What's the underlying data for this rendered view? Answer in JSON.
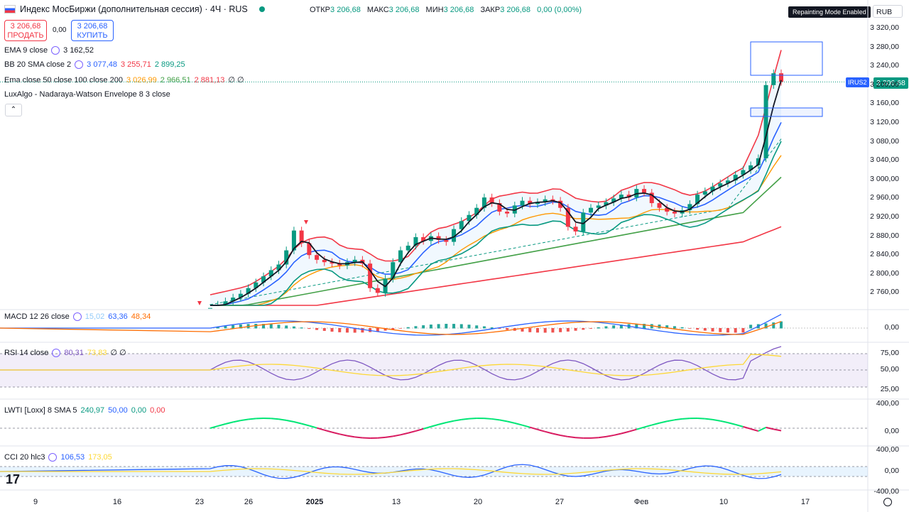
{
  "header": {
    "title": "Индекс МосБиржи (дополнительная сессия) · 4Ч · RUS",
    "ohlc": [
      {
        "k": "ОТКР",
        "v": "3 206,68"
      },
      {
        "k": "МАКС",
        "v": "3 206,68"
      },
      {
        "k": "МИН",
        "v": "3 206,68"
      },
      {
        "k": "ЗАКР",
        "v": "3 206,68"
      },
      {
        "k": "",
        "v": "0,00 (0,00%)"
      }
    ],
    "badge": "Repainting Mode Enabled",
    "currency": "RUB"
  },
  "trade": {
    "sell_price": "3 206,68",
    "sell_label": "ПРОДАТЬ",
    "spread": "0,00",
    "buy_price": "3 206,68",
    "buy_label": "КУПИТЬ"
  },
  "indicators": {
    "ema9": {
      "label": "EMA 9 close",
      "v1": "3 162,52"
    },
    "bb": {
      "label": "BB 20 SMA close 2",
      "v1": "3 077,48",
      "v2": "3 255,71",
      "v3": "2 899,25"
    },
    "ema_multi": {
      "label": "Ema close 50 close 100 close 200",
      "v1": "3 026,99",
      "v2": "2 966,51",
      "v3": "2 881,13",
      "v4": "∅ ∅"
    },
    "lux": {
      "label": "LuxAlgo - Nadaraya-Watson Envelope 8 3 close"
    },
    "macd": {
      "label": "MACD 12 26 close",
      "v1": "15,02",
      "v2": "63,36",
      "v3": "48,34"
    },
    "rsi": {
      "label": "RSI 14 close",
      "v1": "80,31",
      "v2": "73,83",
      "v3": "∅ ∅"
    },
    "lwti": {
      "label": "LWTI [Loxx] 8 SMA 5",
      "v1": "240,97",
      "v2": "50,00",
      "v3": "0,00",
      "v4": "0,00"
    },
    "cci": {
      "label": "CCI 20 hlc3",
      "v1": "106,53",
      "v2": "173,05"
    }
  },
  "price_tag": {
    "symbol": "IRUS2",
    "value": "3 206,68"
  },
  "logo": "17",
  "colors": {
    "up": "#089981",
    "down": "#f23645",
    "bb_basis": "#2962ff",
    "ema9": "#131722",
    "ema50": "#ff9800",
    "ema100": "#43a047",
    "ema200": "#f23645",
    "bb_band": "#f23645",
    "rsi": "#7e57c2",
    "rsi_signal": "#fdd835",
    "cci": "#2962ff",
    "cci_signal": "#fdd835"
  },
  "chart_data": {
    "type": "candlestick",
    "price_axis": {
      "ticks": [
        "3 320,00",
        "3 280,00",
        "3 240,00",
        "3 200,00",
        "3 160,00",
        "3 120,00",
        "3 080,00",
        "3 040,00",
        "3 000,00",
        "2 960,00",
        "2 920,00",
        "2 880,00",
        "2 840,00",
        "2 800,00",
        "2 760,00"
      ],
      "range": [
        2735,
        3345
      ]
    },
    "time_axis": [
      "9",
      "16",
      "23",
      "26",
      "2025",
      "13",
      "20",
      "27",
      "Фев",
      "10",
      "17"
    ],
    "close_series": [
      2728,
      2735,
      2742,
      2750,
      2758,
      2770,
      2782,
      2795,
      2808,
      2820,
      2850,
      2892,
      2865,
      2840,
      2830,
      2825,
      2822,
      2818,
      2825,
      2830,
      2822,
      2770,
      2760,
      2790,
      2825,
      2850,
      2860,
      2878,
      2870,
      2880,
      2872,
      2868,
      2895,
      2912,
      2925,
      2940,
      2962,
      2950,
      2932,
      2928,
      2945,
      2955,
      2948,
      2952,
      2958,
      2955,
      2940,
      2900,
      2890,
      2930,
      2940,
      2945,
      2952,
      2960,
      2968,
      2962,
      2980,
      2972,
      2950,
      2940,
      2932,
      2928,
      2935,
      2948,
      2968,
      2975,
      2985,
      2992,
      2998,
      3010,
      3020,
      3030,
      3045,
      3200,
      3225,
      3206.68
    ],
    "panes": {
      "macd": {
        "ticks": [
          "0,00"
        ]
      },
      "rsi": {
        "ticks": [
          "75,00",
          "50,00",
          "25,00"
        ],
        "levels": [
          70,
          50,
          30
        ]
      },
      "lwti": {
        "ticks": [
          "400,00",
          "0,00"
        ]
      },
      "cci": {
        "ticks": [
          "400,00",
          "0,00",
          "-400,00"
        ],
        "levels": [
          100,
          -100
        ]
      }
    }
  }
}
